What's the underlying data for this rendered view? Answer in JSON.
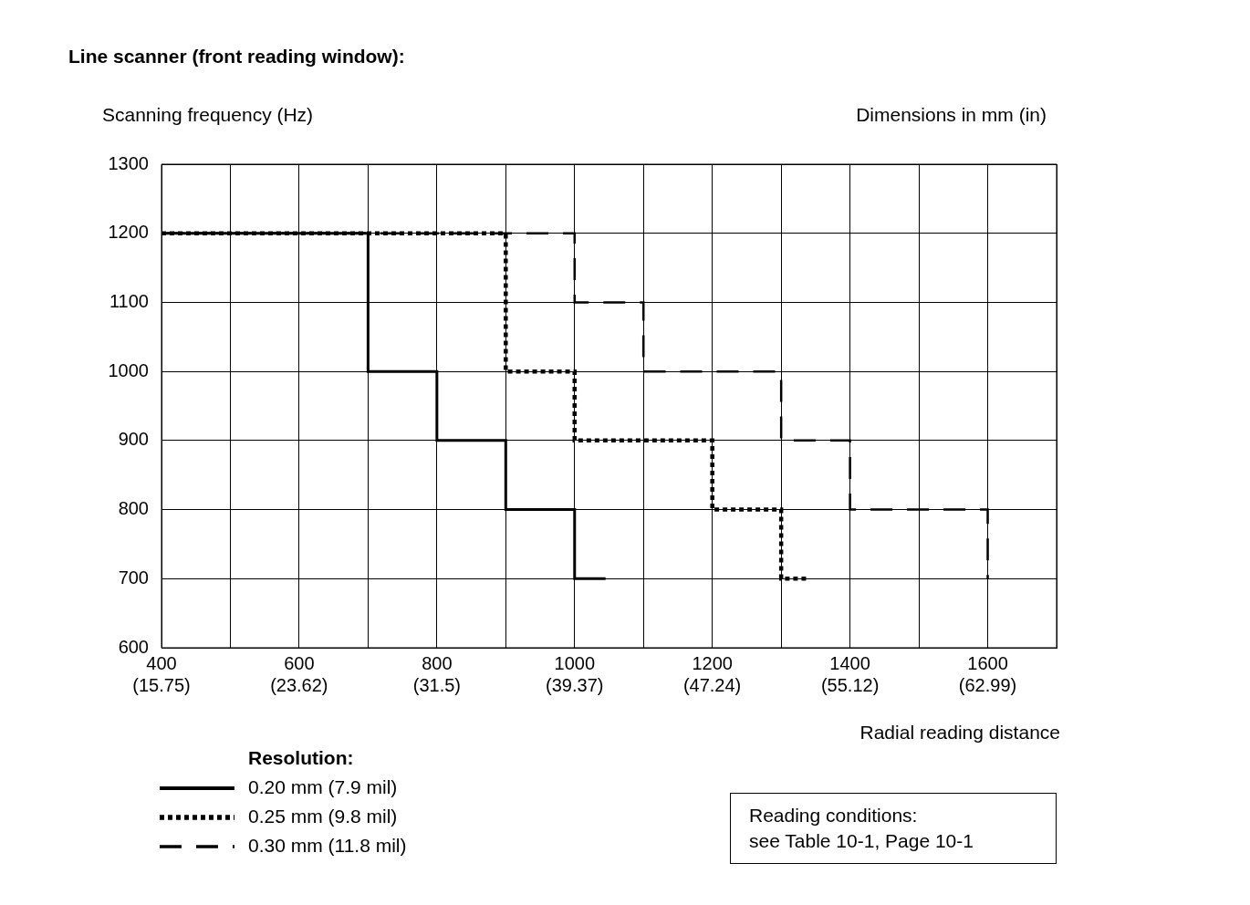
{
  "chart_data": {
    "type": "step",
    "title": "Line scanner (front reading window):",
    "xlabel": "Radial reading distance",
    "ylabel": "Scanning frequency (Hz)",
    "legend_title": "Resolution:",
    "legend": "bottom left",
    "grid": true,
    "xlim": [
      400,
      1700
    ],
    "ylim": [
      600,
      1300
    ],
    "xticks": [
      400,
      {
        "value": 500,
        "label": null
      },
      600,
      {
        "value": 700,
        "label": null
      },
      800,
      {
        "value": 900,
        "label": null
      },
      1000,
      {
        "value": 1100,
        "label": null
      },
      1200,
      {
        "value": 1300,
        "label": null
      },
      1400,
      {
        "value": 1500,
        "label": null
      },
      1600,
      {
        "value": 1700,
        "label": null
      }
    ],
    "x2lim": [
      15.75,
      66.93
    ],
    "x2ticks": [
      {
        "value": 15.75,
        "label": "(15.75)"
      },
      {
        "value": 23.62,
        "label": "(23.62)"
      },
      {
        "value": 31.5,
        "label": "(31.5)"
      },
      {
        "value": 39.37,
        "label": "(39.37)"
      },
      {
        "value": 47.24,
        "label": "(47.24)"
      },
      {
        "value": 55.12,
        "label": "(55.12)"
      },
      {
        "value": 62.99,
        "label": "(62.99)"
      }
    ],
    "yticks": [
      600,
      700,
      800,
      900,
      1000,
      1100,
      1200,
      1300
    ],
    "series": [
      {
        "name": "0.20 mm (7.9 mil)",
        "color": "#000000",
        "line_style": "solid",
        "x": [
          400,
          700,
          800,
          900,
          1000,
          1045
        ],
        "values": [
          1200,
          1000,
          900,
          800,
          700,
          700
        ]
      },
      {
        "name": "0.25 mm (9.8 mil)",
        "color": "#000000",
        "line_style": "dotted",
        "x": [
          400,
          900,
          1000,
          1200,
          1300,
          1340
        ],
        "values": [
          1200,
          1000,
          900,
          800,
          700,
          700
        ]
      },
      {
        "name": "0.30 mm (11.8 mil)",
        "color": "#000000",
        "line_style": "dashed",
        "x": [
          400,
          1000,
          1100,
          1300,
          1400,
          1600
        ],
        "values": [
          1200,
          1100,
          1000,
          900,
          800,
          700
        ]
      }
    ],
    "annotations": [
      "Dimensions in mm (in)",
      "Reading conditions:\nsee Table 10-1, Page 10-1"
    ]
  }
}
